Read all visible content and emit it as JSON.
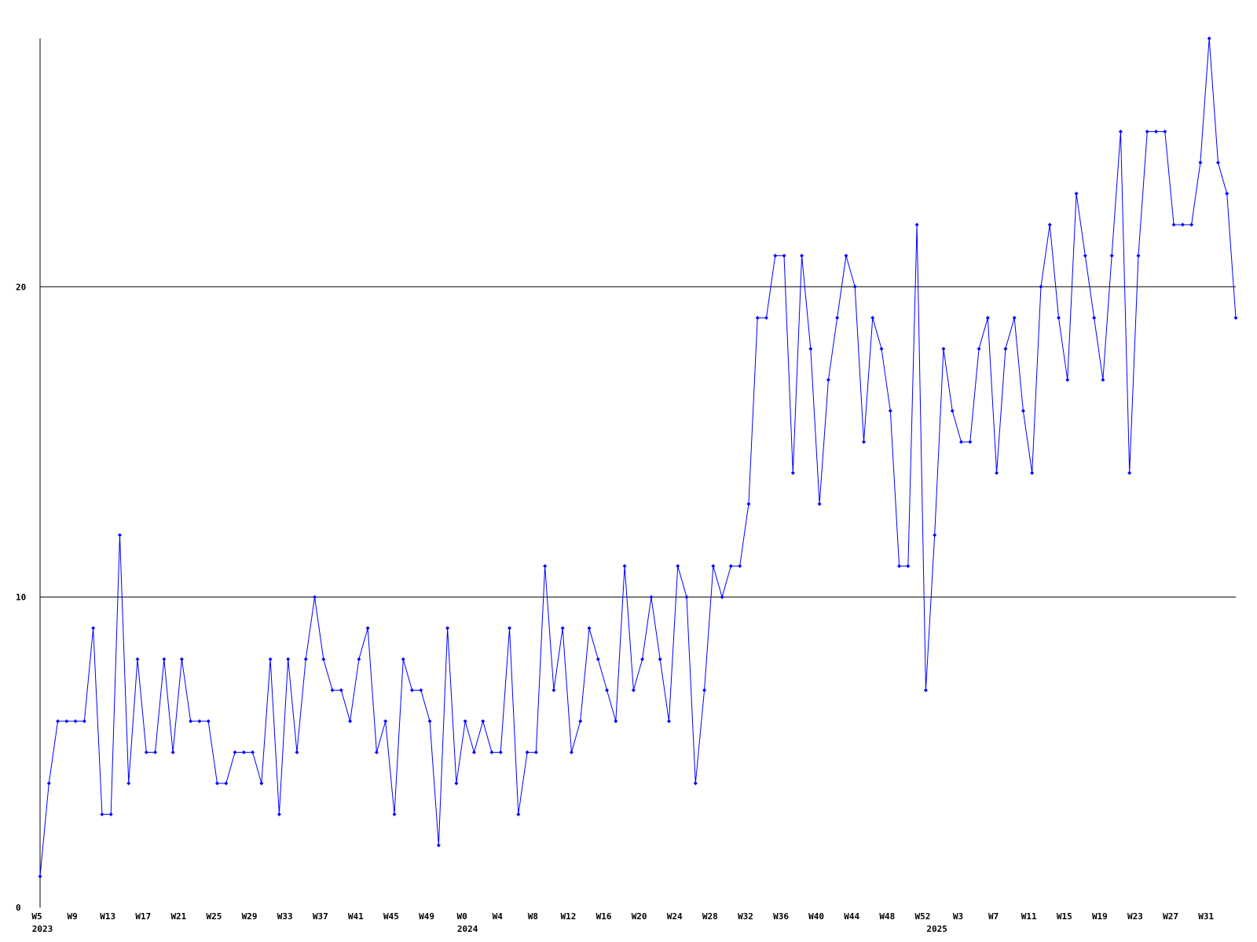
{
  "chart_data": {
    "type": "line",
    "categories": [
      "W5",
      null,
      null,
      null,
      "W9",
      null,
      null,
      null,
      "W13",
      null,
      null,
      null,
      "W17",
      null,
      null,
      null,
      "W21",
      null,
      null,
      null,
      "W25",
      null,
      null,
      null,
      "W29",
      null,
      null,
      null,
      "W33",
      null,
      null,
      null,
      "W37",
      null,
      null,
      null,
      "W41",
      null,
      null,
      null,
      "W45",
      null,
      null,
      null,
      "W49",
      null,
      null,
      null,
      "W0",
      null,
      null,
      null,
      "W4",
      null,
      null,
      null,
      "W8",
      null,
      null,
      null,
      "W12",
      null,
      null,
      null,
      "W16",
      null,
      null,
      null,
      "W20",
      null,
      null,
      null,
      "W24",
      null,
      null,
      null,
      "W28",
      null,
      null,
      null,
      "W32",
      null,
      null,
      null,
      "W36",
      null,
      null,
      null,
      "W40",
      null,
      null,
      null,
      "W44",
      null,
      null,
      null,
      "W48",
      null,
      null,
      null,
      "W52",
      null,
      null,
      null,
      "W3",
      null,
      null,
      null,
      "W7",
      null,
      null,
      null,
      "W11",
      null,
      null,
      null,
      "W15",
      null,
      null,
      null,
      "W19",
      null,
      null,
      null,
      "W23",
      null,
      null,
      null,
      "W27",
      null,
      null,
      null,
      "W31",
      null,
      null,
      null
    ],
    "year_labels": [
      {
        "label": "2023",
        "at": 0
      },
      {
        "label": "2024",
        "at": 48
      },
      {
        "label": "2025",
        "at": 101
      }
    ],
    "values": [
      1,
      4,
      6,
      6,
      6,
      6,
      9,
      3,
      3,
      12,
      4,
      8,
      5,
      5,
      8,
      5,
      8,
      6,
      6,
      6,
      4,
      4,
      5,
      5,
      5,
      4,
      8,
      3,
      8,
      5,
      8,
      10,
      8,
      7,
      7,
      6,
      8,
      9,
      5,
      6,
      3,
      8,
      7,
      7,
      6,
      2,
      9,
      4,
      6,
      5,
      6,
      5,
      5,
      9,
      3,
      5,
      5,
      11,
      7,
      9,
      5,
      6,
      9,
      8,
      7,
      6,
      11,
      7,
      8,
      10,
      8,
      6,
      11,
      10,
      4,
      7,
      11,
      10,
      11,
      11,
      13,
      19,
      19,
      21,
      21,
      14,
      21,
      18,
      13,
      17,
      19,
      21,
      20,
      15,
      19,
      18,
      16,
      11,
      11,
      22,
      7,
      12,
      18,
      16,
      15,
      15,
      18,
      19,
      14,
      18,
      19,
      16,
      14,
      20,
      22,
      19,
      17,
      23,
      21,
      19,
      17,
      21,
      25,
      14,
      21,
      25,
      25,
      25,
      22,
      22,
      22,
      24,
      28,
      24,
      23,
      19
    ],
    "color": "#0000ff",
    "ylim": [
      0,
      28
    ],
    "yticks": [
      0,
      10,
      20
    ],
    "grid": true
  }
}
